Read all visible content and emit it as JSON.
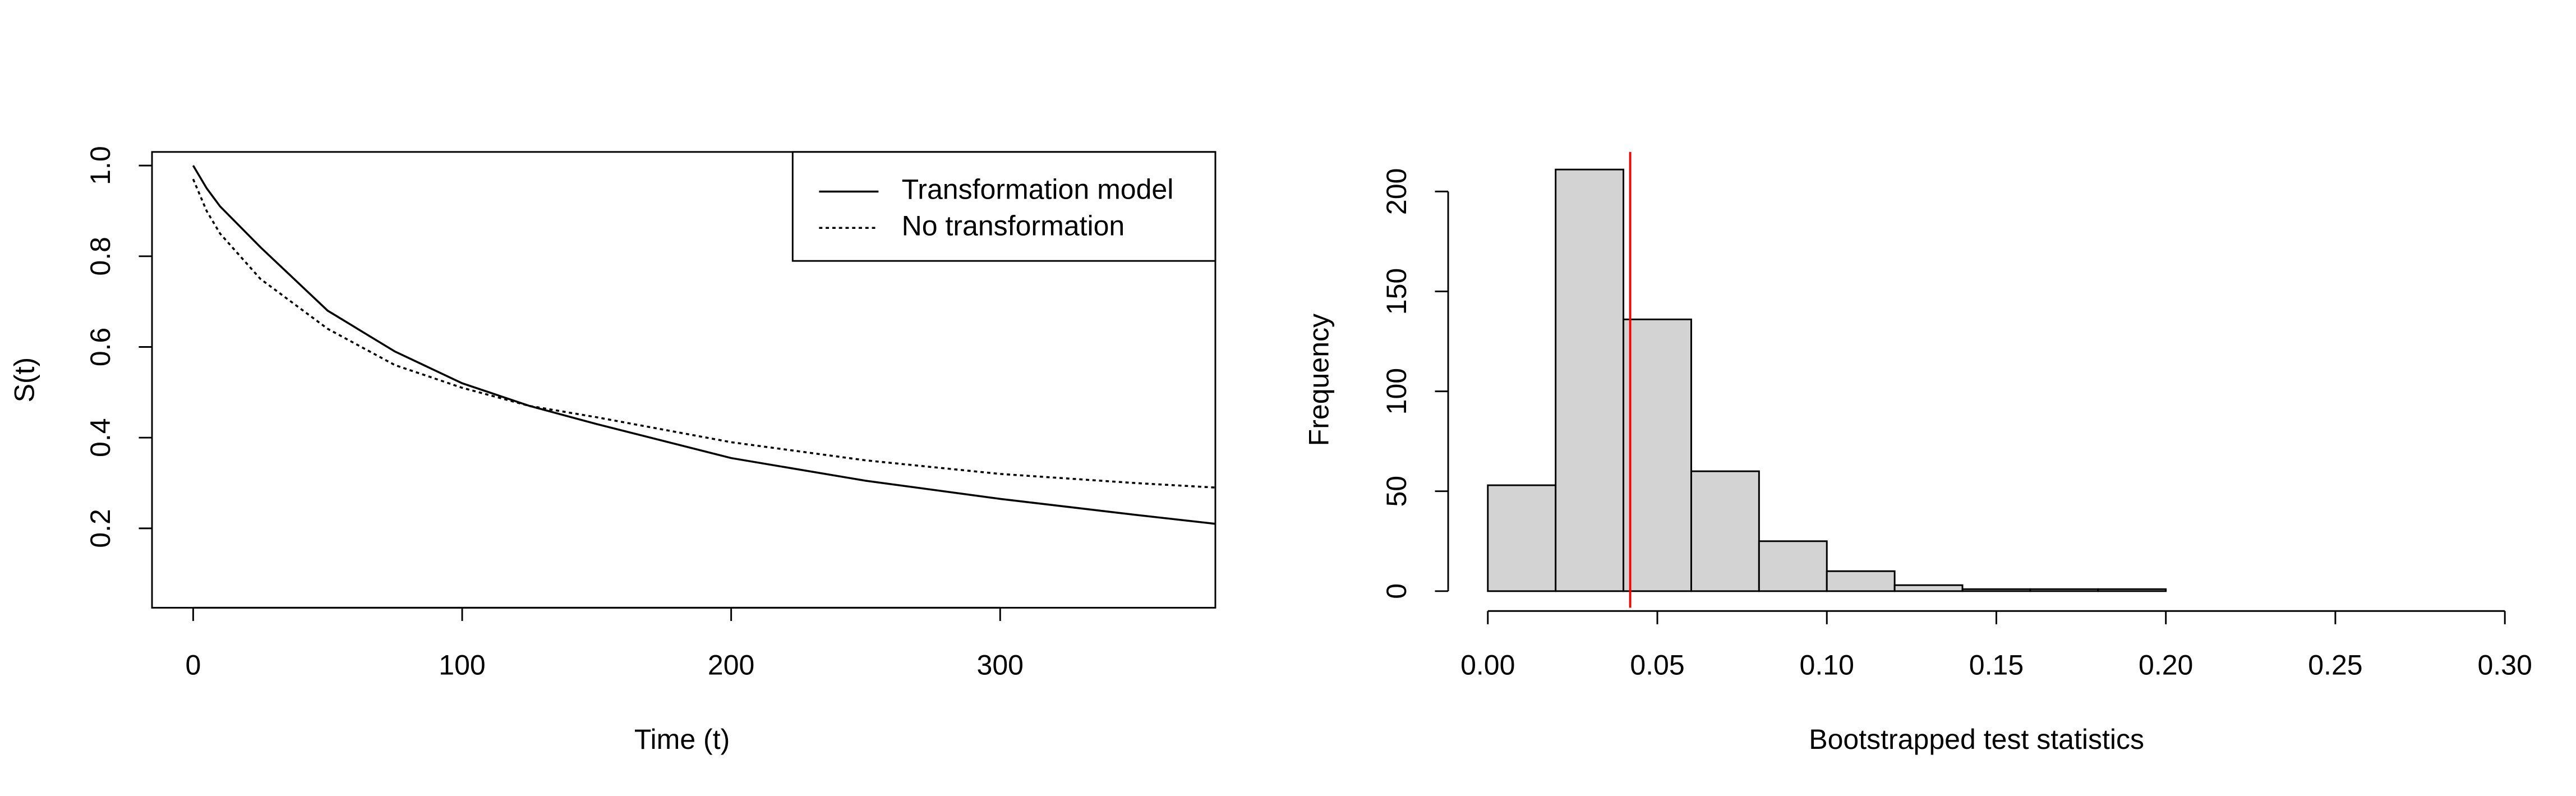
{
  "chart_data": [
    {
      "type": "line",
      "xlabel": "Time (t)",
      "ylabel": "S(t)",
      "x": [
        0,
        5,
        10,
        25,
        50,
        75,
        100,
        125,
        150,
        200,
        250,
        300,
        350,
        380
      ],
      "series": [
        {
          "name": "Transformation model",
          "color": "#000000",
          "dash": "solid",
          "values": [
            1.0,
            0.95,
            0.91,
            0.82,
            0.68,
            0.59,
            0.52,
            0.47,
            0.43,
            0.355,
            0.305,
            0.265,
            0.23,
            0.21
          ]
        },
        {
          "name": "No transformation",
          "color": "#000000",
          "dash": "dotted",
          "values": [
            0.97,
            0.9,
            0.85,
            0.75,
            0.64,
            0.56,
            0.51,
            0.47,
            0.445,
            0.39,
            0.35,
            0.32,
            0.3,
            0.29
          ]
        }
      ],
      "xlim": [
        -15.3,
        380
      ],
      "xticks": [
        0,
        100,
        200,
        300
      ],
      "ylim": [
        0.025,
        1.03
      ],
      "yticks": [
        0.2,
        0.4,
        0.6,
        0.8,
        {
          "value": 1,
          "label": "1.0"
        }
      ],
      "legend": "top-right"
    },
    {
      "type": "histogram",
      "xlabel": "Bootstrapped test statistics",
      "ylabel": "Frequency",
      "bins": [
        0,
        0.02,
        0.04,
        0.06,
        0.08,
        0.1,
        0.12,
        0.14,
        0.16,
        0.18,
        0.2
      ],
      "values": [
        53,
        211,
        136,
        60,
        25,
        10,
        3,
        1,
        1,
        1
      ],
      "color": "#d3d3d3",
      "vline": 0.042,
      "vline_color": "#ff0000",
      "xlim": [
        -0.0117,
        0.3117
      ],
      "xticks": [
        {
          "value": 0,
          "label": "0.00"
        },
        0.05,
        {
          "value": 0.1,
          "label": "0.10"
        },
        0.15,
        {
          "value": 0.2,
          "label": "0.20"
        },
        0.25,
        {
          "value": 0.3,
          "label": "0.30"
        }
      ],
      "ylim": [
        -8.3,
        219.8
      ],
      "yticks": [
        0,
        50,
        100,
        150,
        200
      ]
    }
  ]
}
